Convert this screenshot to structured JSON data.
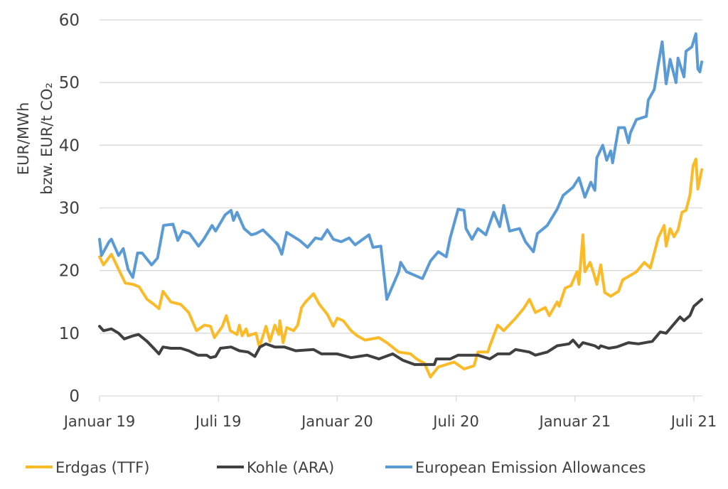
{
  "chart_data": {
    "type": "line",
    "title": "",
    "xlabel": "",
    "ylabel_lines": [
      "EUR/MWh",
      "bzw. EUR/t CO₂"
    ],
    "x_unit": "months since January 2019",
    "xlim": [
      0,
      30.4
    ],
    "ylim": [
      0,
      60
    ],
    "yticks": [
      0,
      10,
      20,
      30,
      40,
      50,
      60
    ],
    "xticks": [
      {
        "x": 0,
        "label": "Januar 19"
      },
      {
        "x": 6,
        "label": "Juli 19"
      },
      {
        "x": 12,
        "label": "Januar 20"
      },
      {
        "x": 18,
        "label": "Juli 20"
      },
      {
        "x": 24,
        "label": "Januar 21"
      },
      {
        "x": 30,
        "label": "Juli 21"
      }
    ],
    "grid": true,
    "legend_position": "bottom",
    "series": [
      {
        "name": "Erdgas (TTF)",
        "color": "#FBBA28",
        "points": [
          [
            0,
            22.2
          ],
          [
            0.2,
            20.9
          ],
          [
            0.6,
            22.6
          ],
          [
            0.96,
            20.2
          ],
          [
            1.3,
            18
          ],
          [
            1.7,
            17.8
          ],
          [
            2.0,
            17.4
          ],
          [
            2.4,
            15.4
          ],
          [
            2.75,
            14.6
          ],
          [
            3.0,
            13.9
          ],
          [
            3.2,
            16.7
          ],
          [
            3.6,
            15
          ],
          [
            4.1,
            14.6
          ],
          [
            4.5,
            13.3
          ],
          [
            4.9,
            10.4
          ],
          [
            5.3,
            11.3
          ],
          [
            5.6,
            11.1
          ],
          [
            5.8,
            9.3
          ],
          [
            6.2,
            11.1
          ],
          [
            6.4,
            12.8
          ],
          [
            6.6,
            10.4
          ],
          [
            6.94,
            9.8
          ],
          [
            7.06,
            11.3
          ],
          [
            7.2,
            9.6
          ],
          [
            7.4,
            10.7
          ],
          [
            7.5,
            9.6
          ],
          [
            7.9,
            10
          ],
          [
            8.07,
            7.8
          ],
          [
            8.4,
            11.1
          ],
          [
            8.6,
            8.7
          ],
          [
            8.85,
            11.3
          ],
          [
            9.05,
            9.8
          ],
          [
            9.1,
            12
          ],
          [
            9.27,
            8.5
          ],
          [
            9.45,
            10.9
          ],
          [
            9.8,
            10.4
          ],
          [
            10.0,
            11.3
          ],
          [
            10.2,
            14.1
          ],
          [
            10.4,
            15
          ],
          [
            10.8,
            16.3
          ],
          [
            11.1,
            14.6
          ],
          [
            11.5,
            13
          ],
          [
            11.8,
            11.1
          ],
          [
            12.0,
            12.4
          ],
          [
            12.3,
            12
          ],
          [
            12.7,
            10.4
          ],
          [
            13.0,
            9.6
          ],
          [
            13.4,
            8.9
          ],
          [
            14.1,
            9.3
          ],
          [
            14.5,
            8.5
          ],
          [
            15.1,
            7
          ],
          [
            15.7,
            6.7
          ],
          [
            16.0,
            5.9
          ],
          [
            16.4,
            5.2
          ],
          [
            16.7,
            3
          ],
          [
            17.1,
            4.6
          ],
          [
            17.9,
            5.4
          ],
          [
            18.4,
            4.3
          ],
          [
            18.9,
            4.8
          ],
          [
            19.1,
            7
          ],
          [
            19.6,
            7
          ],
          [
            19.7,
            8
          ],
          [
            20.1,
            11.3
          ],
          [
            20.4,
            10.4
          ],
          [
            21.0,
            12.4
          ],
          [
            21.4,
            13.9
          ],
          [
            21.7,
            15.4
          ],
          [
            22.0,
            13.3
          ],
          [
            22.5,
            14.1
          ],
          [
            22.7,
            12.8
          ],
          [
            23.1,
            15
          ],
          [
            23.2,
            14.3
          ],
          [
            23.5,
            17.2
          ],
          [
            23.8,
            17.6
          ],
          [
            24.1,
            19.8
          ],
          [
            24.2,
            17.8
          ],
          [
            24.4,
            25.7
          ],
          [
            24.5,
            19.8
          ],
          [
            24.76,
            21.3
          ],
          [
            24.94,
            19.6
          ],
          [
            25.1,
            17.8
          ],
          [
            25.3,
            20.9
          ],
          [
            25.5,
            16.5
          ],
          [
            25.8,
            15.9
          ],
          [
            26.2,
            16.7
          ],
          [
            26.4,
            18.5
          ],
          [
            27.1,
            19.8
          ],
          [
            27.5,
            21.3
          ],
          [
            27.8,
            20.4
          ],
          [
            28.0,
            22.8
          ],
          [
            28.2,
            25.2
          ],
          [
            28.5,
            27.2
          ],
          [
            28.6,
            23.9
          ],
          [
            28.8,
            26.7
          ],
          [
            29.0,
            25.4
          ],
          [
            29.2,
            26.5
          ],
          [
            29.4,
            29.3
          ],
          [
            29.6,
            29.6
          ],
          [
            29.8,
            32
          ],
          [
            29.96,
            36.7
          ],
          [
            30.1,
            37.8
          ],
          [
            30.2,
            33
          ],
          [
            30.4,
            36.1
          ]
        ]
      },
      {
        "name": "Kohle (ARA)",
        "color": "#404040",
        "points": [
          [
            0,
            11.1
          ],
          [
            0.2,
            10.4
          ],
          [
            0.6,
            10.7
          ],
          [
            0.96,
            10
          ],
          [
            1.25,
            9.1
          ],
          [
            1.7,
            9.6
          ],
          [
            1.97,
            9.8
          ],
          [
            2.4,
            8.7
          ],
          [
            2.8,
            7.4
          ],
          [
            3.0,
            6.7
          ],
          [
            3.2,
            7.8
          ],
          [
            3.6,
            7.6
          ],
          [
            4.1,
            7.6
          ],
          [
            4.5,
            7.2
          ],
          [
            4.96,
            6.5
          ],
          [
            5.4,
            6.5
          ],
          [
            5.6,
            6.1
          ],
          [
            5.86,
            6.3
          ],
          [
            6.1,
            7.6
          ],
          [
            6.64,
            7.8
          ],
          [
            7.06,
            7.2
          ],
          [
            7.5,
            7
          ],
          [
            7.84,
            6.3
          ],
          [
            8.1,
            7.8
          ],
          [
            8.4,
            8.3
          ],
          [
            8.85,
            7.8
          ],
          [
            9.33,
            7.8
          ],
          [
            9.9,
            7.2
          ],
          [
            10.8,
            7.4
          ],
          [
            11.2,
            6.7
          ],
          [
            12.0,
            6.7
          ],
          [
            12.7,
            6.1
          ],
          [
            13.5,
            6.5
          ],
          [
            14.1,
            5.9
          ],
          [
            14.8,
            6.7
          ],
          [
            15.3,
            5.7
          ],
          [
            15.9,
            5
          ],
          [
            16.9,
            5
          ],
          [
            17.0,
            5.9
          ],
          [
            17.7,
            5.9
          ],
          [
            18.1,
            6.5
          ],
          [
            19.1,
            6.5
          ],
          [
            19.7,
            5.9
          ],
          [
            20.1,
            6.7
          ],
          [
            20.7,
            6.7
          ],
          [
            21.0,
            7.4
          ],
          [
            21.7,
            7
          ],
          [
            22.0,
            6.5
          ],
          [
            22.6,
            7
          ],
          [
            23.1,
            8
          ],
          [
            23.7,
            8.3
          ],
          [
            23.9,
            8.9
          ],
          [
            24.2,
            7.8
          ],
          [
            24.4,
            8.5
          ],
          [
            25.0,
            8
          ],
          [
            25.2,
            7.6
          ],
          [
            25.3,
            8
          ],
          [
            25.7,
            7.6
          ],
          [
            26.1,
            7.8
          ],
          [
            26.7,
            8.5
          ],
          [
            27.2,
            8.3
          ],
          [
            27.9,
            8.7
          ],
          [
            28.3,
            10.2
          ],
          [
            28.6,
            10
          ],
          [
            28.9,
            11.1
          ],
          [
            29.3,
            12.6
          ],
          [
            29.5,
            12
          ],
          [
            29.8,
            12.8
          ],
          [
            30.0,
            14.3
          ],
          [
            30.4,
            15.4
          ]
        ]
      },
      {
        "name": "European Emission Allowances",
        "color": "#5B9BD5",
        "points": [
          [
            0,
            25
          ],
          [
            0.1,
            22.4
          ],
          [
            0.48,
            24.6
          ],
          [
            0.6,
            25
          ],
          [
            0.96,
            22.4
          ],
          [
            1.2,
            23.5
          ],
          [
            1.44,
            20.2
          ],
          [
            1.68,
            18.9
          ],
          [
            1.92,
            22.8
          ],
          [
            2.15,
            22.8
          ],
          [
            2.63,
            20.9
          ],
          [
            2.93,
            22
          ],
          [
            3.23,
            27.2
          ],
          [
            3.71,
            27.4
          ],
          [
            3.95,
            24.8
          ],
          [
            4.2,
            26.3
          ],
          [
            4.54,
            25.9
          ],
          [
            5.0,
            23.9
          ],
          [
            5.26,
            25
          ],
          [
            5.68,
            27.2
          ],
          [
            5.86,
            26.3
          ],
          [
            6.34,
            28.9
          ],
          [
            6.64,
            29.6
          ],
          [
            6.76,
            28
          ],
          [
            6.94,
            29.3
          ],
          [
            7.3,
            26.7
          ],
          [
            7.66,
            25.7
          ],
          [
            7.9,
            25.9
          ],
          [
            8.25,
            26.5
          ],
          [
            8.67,
            25.2
          ],
          [
            9.0,
            24.1
          ],
          [
            9.2,
            22.6
          ],
          [
            9.45,
            26.1
          ],
          [
            9.8,
            25.4
          ],
          [
            10.1,
            24.8
          ],
          [
            10.5,
            23.7
          ],
          [
            10.9,
            25.2
          ],
          [
            11.2,
            25
          ],
          [
            11.5,
            26.5
          ],
          [
            11.8,
            25
          ],
          [
            12.2,
            24.6
          ],
          [
            12.6,
            25.2
          ],
          [
            12.9,
            24.1
          ],
          [
            13.6,
            25.7
          ],
          [
            13.8,
            23.7
          ],
          [
            14.2,
            23.9
          ],
          [
            14.5,
            15.4
          ],
          [
            15.1,
            19.8
          ],
          [
            15.2,
            21.3
          ],
          [
            15.5,
            19.8
          ],
          [
            16.3,
            18.7
          ],
          [
            16.7,
            21.5
          ],
          [
            17.1,
            23
          ],
          [
            17.5,
            22.2
          ],
          [
            17.7,
            25.2
          ],
          [
            18.1,
            29.8
          ],
          [
            18.4,
            29.6
          ],
          [
            18.5,
            26.7
          ],
          [
            18.8,
            25
          ],
          [
            19.1,
            26.7
          ],
          [
            19.5,
            25.7
          ],
          [
            19.9,
            29.3
          ],
          [
            20.2,
            27
          ],
          [
            20.4,
            30.4
          ],
          [
            20.7,
            26.3
          ],
          [
            21.2,
            26.7
          ],
          [
            21.5,
            24.6
          ],
          [
            21.9,
            23
          ],
          [
            22.1,
            25.9
          ],
          [
            22.6,
            27.2
          ],
          [
            23.1,
            29.8
          ],
          [
            23.4,
            32
          ],
          [
            23.9,
            33.3
          ],
          [
            24.2,
            34.8
          ],
          [
            24.5,
            31.7
          ],
          [
            24.8,
            34.1
          ],
          [
            25.0,
            32.8
          ],
          [
            25.1,
            38
          ],
          [
            25.4,
            40
          ],
          [
            25.6,
            37.6
          ],
          [
            25.8,
            39.1
          ],
          [
            25.9,
            37.2
          ],
          [
            26.2,
            42.8
          ],
          [
            26.5,
            42.8
          ],
          [
            26.7,
            40.4
          ],
          [
            26.8,
            42
          ],
          [
            27.1,
            44.1
          ],
          [
            27.6,
            44.6
          ],
          [
            27.7,
            47.2
          ],
          [
            28.0,
            48.9
          ],
          [
            28.2,
            52.8
          ],
          [
            28.4,
            56.5
          ],
          [
            28.6,
            49.8
          ],
          [
            28.8,
            53.7
          ],
          [
            29.1,
            50
          ],
          [
            29.2,
            53.9
          ],
          [
            29.5,
            50.9
          ],
          [
            29.6,
            55
          ],
          [
            29.9,
            55.7
          ],
          [
            30.1,
            57.8
          ],
          [
            30.2,
            52.2
          ],
          [
            30.3,
            51.7
          ],
          [
            30.4,
            53.3
          ]
        ]
      }
    ]
  }
}
